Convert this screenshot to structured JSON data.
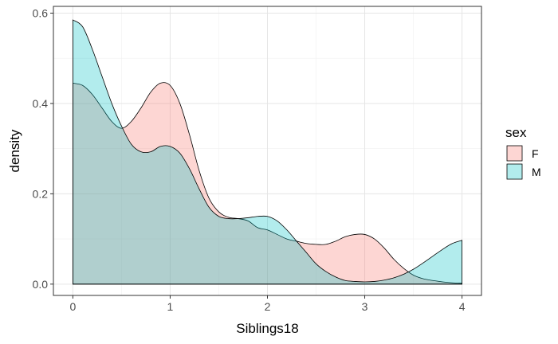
{
  "chart_data": {
    "type": "area",
    "subtype": "density",
    "xlabel": "Siblings18",
    "ylabel": "density",
    "xlim": [
      -0.2,
      4.2
    ],
    "ylim": [
      -0.025,
      0.615
    ],
    "x_ticks": [
      0,
      1,
      2,
      3,
      4
    ],
    "x_tick_labels": [
      "0",
      "1",
      "2",
      "3",
      "4"
    ],
    "y_ticks": [
      0.0,
      0.2,
      0.4,
      0.6
    ],
    "y_tick_labels": [
      "0.0",
      "0.2",
      "0.4",
      "0.6"
    ],
    "grid": true,
    "legend": {
      "title": "sex",
      "position": "right"
    },
    "series": [
      {
        "name": "F",
        "color": "#F8766D",
        "x": [
          0,
          0.1,
          0.2,
          0.3,
          0.4,
          0.5,
          0.6,
          0.7,
          0.8,
          0.9,
          1.0,
          1.1,
          1.2,
          1.3,
          1.4,
          1.5,
          1.6,
          1.7,
          1.8,
          1.9,
          2.0,
          2.1,
          2.2,
          2.3,
          2.4,
          2.5,
          2.6,
          2.7,
          2.8,
          2.9,
          3.0,
          3.1,
          3.2,
          3.3,
          3.4,
          3.5,
          3.6,
          3.7,
          3.8,
          3.9,
          4.0
        ],
        "values": [
          0.445,
          0.44,
          0.42,
          0.39,
          0.36,
          0.345,
          0.36,
          0.39,
          0.425,
          0.445,
          0.44,
          0.4,
          0.33,
          0.25,
          0.19,
          0.16,
          0.148,
          0.145,
          0.14,
          0.125,
          0.12,
          0.11,
          0.1,
          0.095,
          0.09,
          0.088,
          0.088,
          0.095,
          0.105,
          0.11,
          0.11,
          0.1,
          0.08,
          0.055,
          0.035,
          0.02,
          0.012,
          0.008,
          0.005,
          0.003,
          0.002
        ]
      },
      {
        "name": "M",
        "color": "#00BFC4",
        "x": [
          0,
          0.1,
          0.2,
          0.3,
          0.4,
          0.5,
          0.6,
          0.7,
          0.8,
          0.9,
          1.0,
          1.1,
          1.2,
          1.3,
          1.4,
          1.5,
          1.6,
          1.7,
          1.8,
          1.9,
          2.0,
          2.1,
          2.2,
          2.3,
          2.4,
          2.5,
          2.6,
          2.7,
          2.8,
          2.9,
          3.0,
          3.1,
          3.2,
          3.3,
          3.4,
          3.5,
          3.6,
          3.7,
          3.8,
          3.9,
          4.0
        ],
        "values": [
          0.585,
          0.57,
          0.52,
          0.46,
          0.4,
          0.35,
          0.31,
          0.293,
          0.293,
          0.305,
          0.305,
          0.29,
          0.255,
          0.21,
          0.17,
          0.15,
          0.145,
          0.145,
          0.147,
          0.15,
          0.15,
          0.14,
          0.12,
          0.095,
          0.07,
          0.045,
          0.028,
          0.016,
          0.008,
          0.006,
          0.005,
          0.006,
          0.009,
          0.014,
          0.022,
          0.033,
          0.047,
          0.062,
          0.077,
          0.09,
          0.097
        ]
      }
    ]
  }
}
